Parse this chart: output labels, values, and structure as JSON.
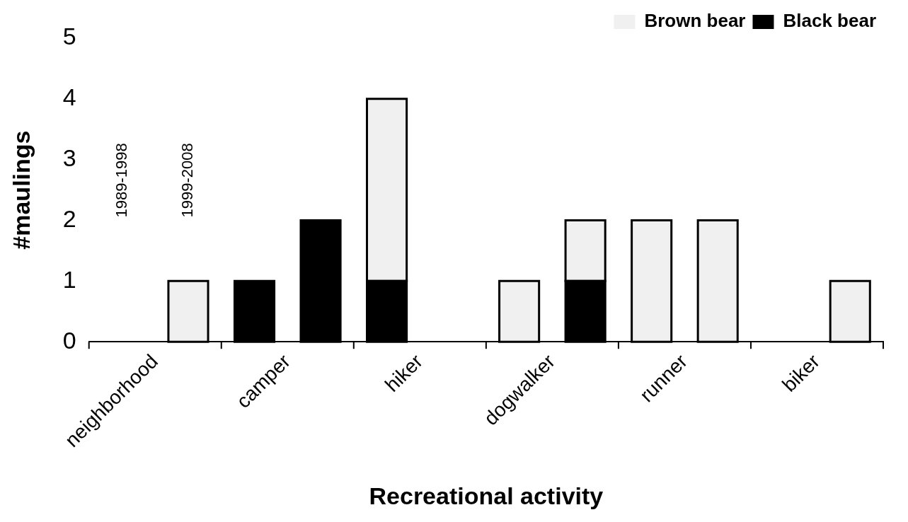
{
  "chart_data": {
    "type": "bar",
    "stacked": true,
    "xlabel": "Recreational activity",
    "ylabel": "#maulings",
    "categories": [
      "neighborhood",
      null,
      "camper",
      null,
      "hiker",
      null,
      "dogwalker",
      null,
      "runner",
      null,
      "biker",
      null
    ],
    "series": [
      {
        "name": "Black bear",
        "color": "#000000",
        "values": [
          null,
          null,
          1,
          2,
          1,
          null,
          null,
          1,
          null,
          null,
          null,
          null
        ]
      },
      {
        "name": "Brown bear",
        "color": "#f0f0f0",
        "values": [
          null,
          1,
          null,
          null,
          3,
          null,
          1,
          1,
          2,
          2,
          null,
          1
        ]
      }
    ],
    "annotations": [
      "1989-1998",
      "1999-2008"
    ],
    "ylim": [
      0,
      5
    ],
    "yticks": [
      0,
      1,
      2,
      3,
      4,
      5
    ],
    "grid": false,
    "legend": "top right"
  }
}
